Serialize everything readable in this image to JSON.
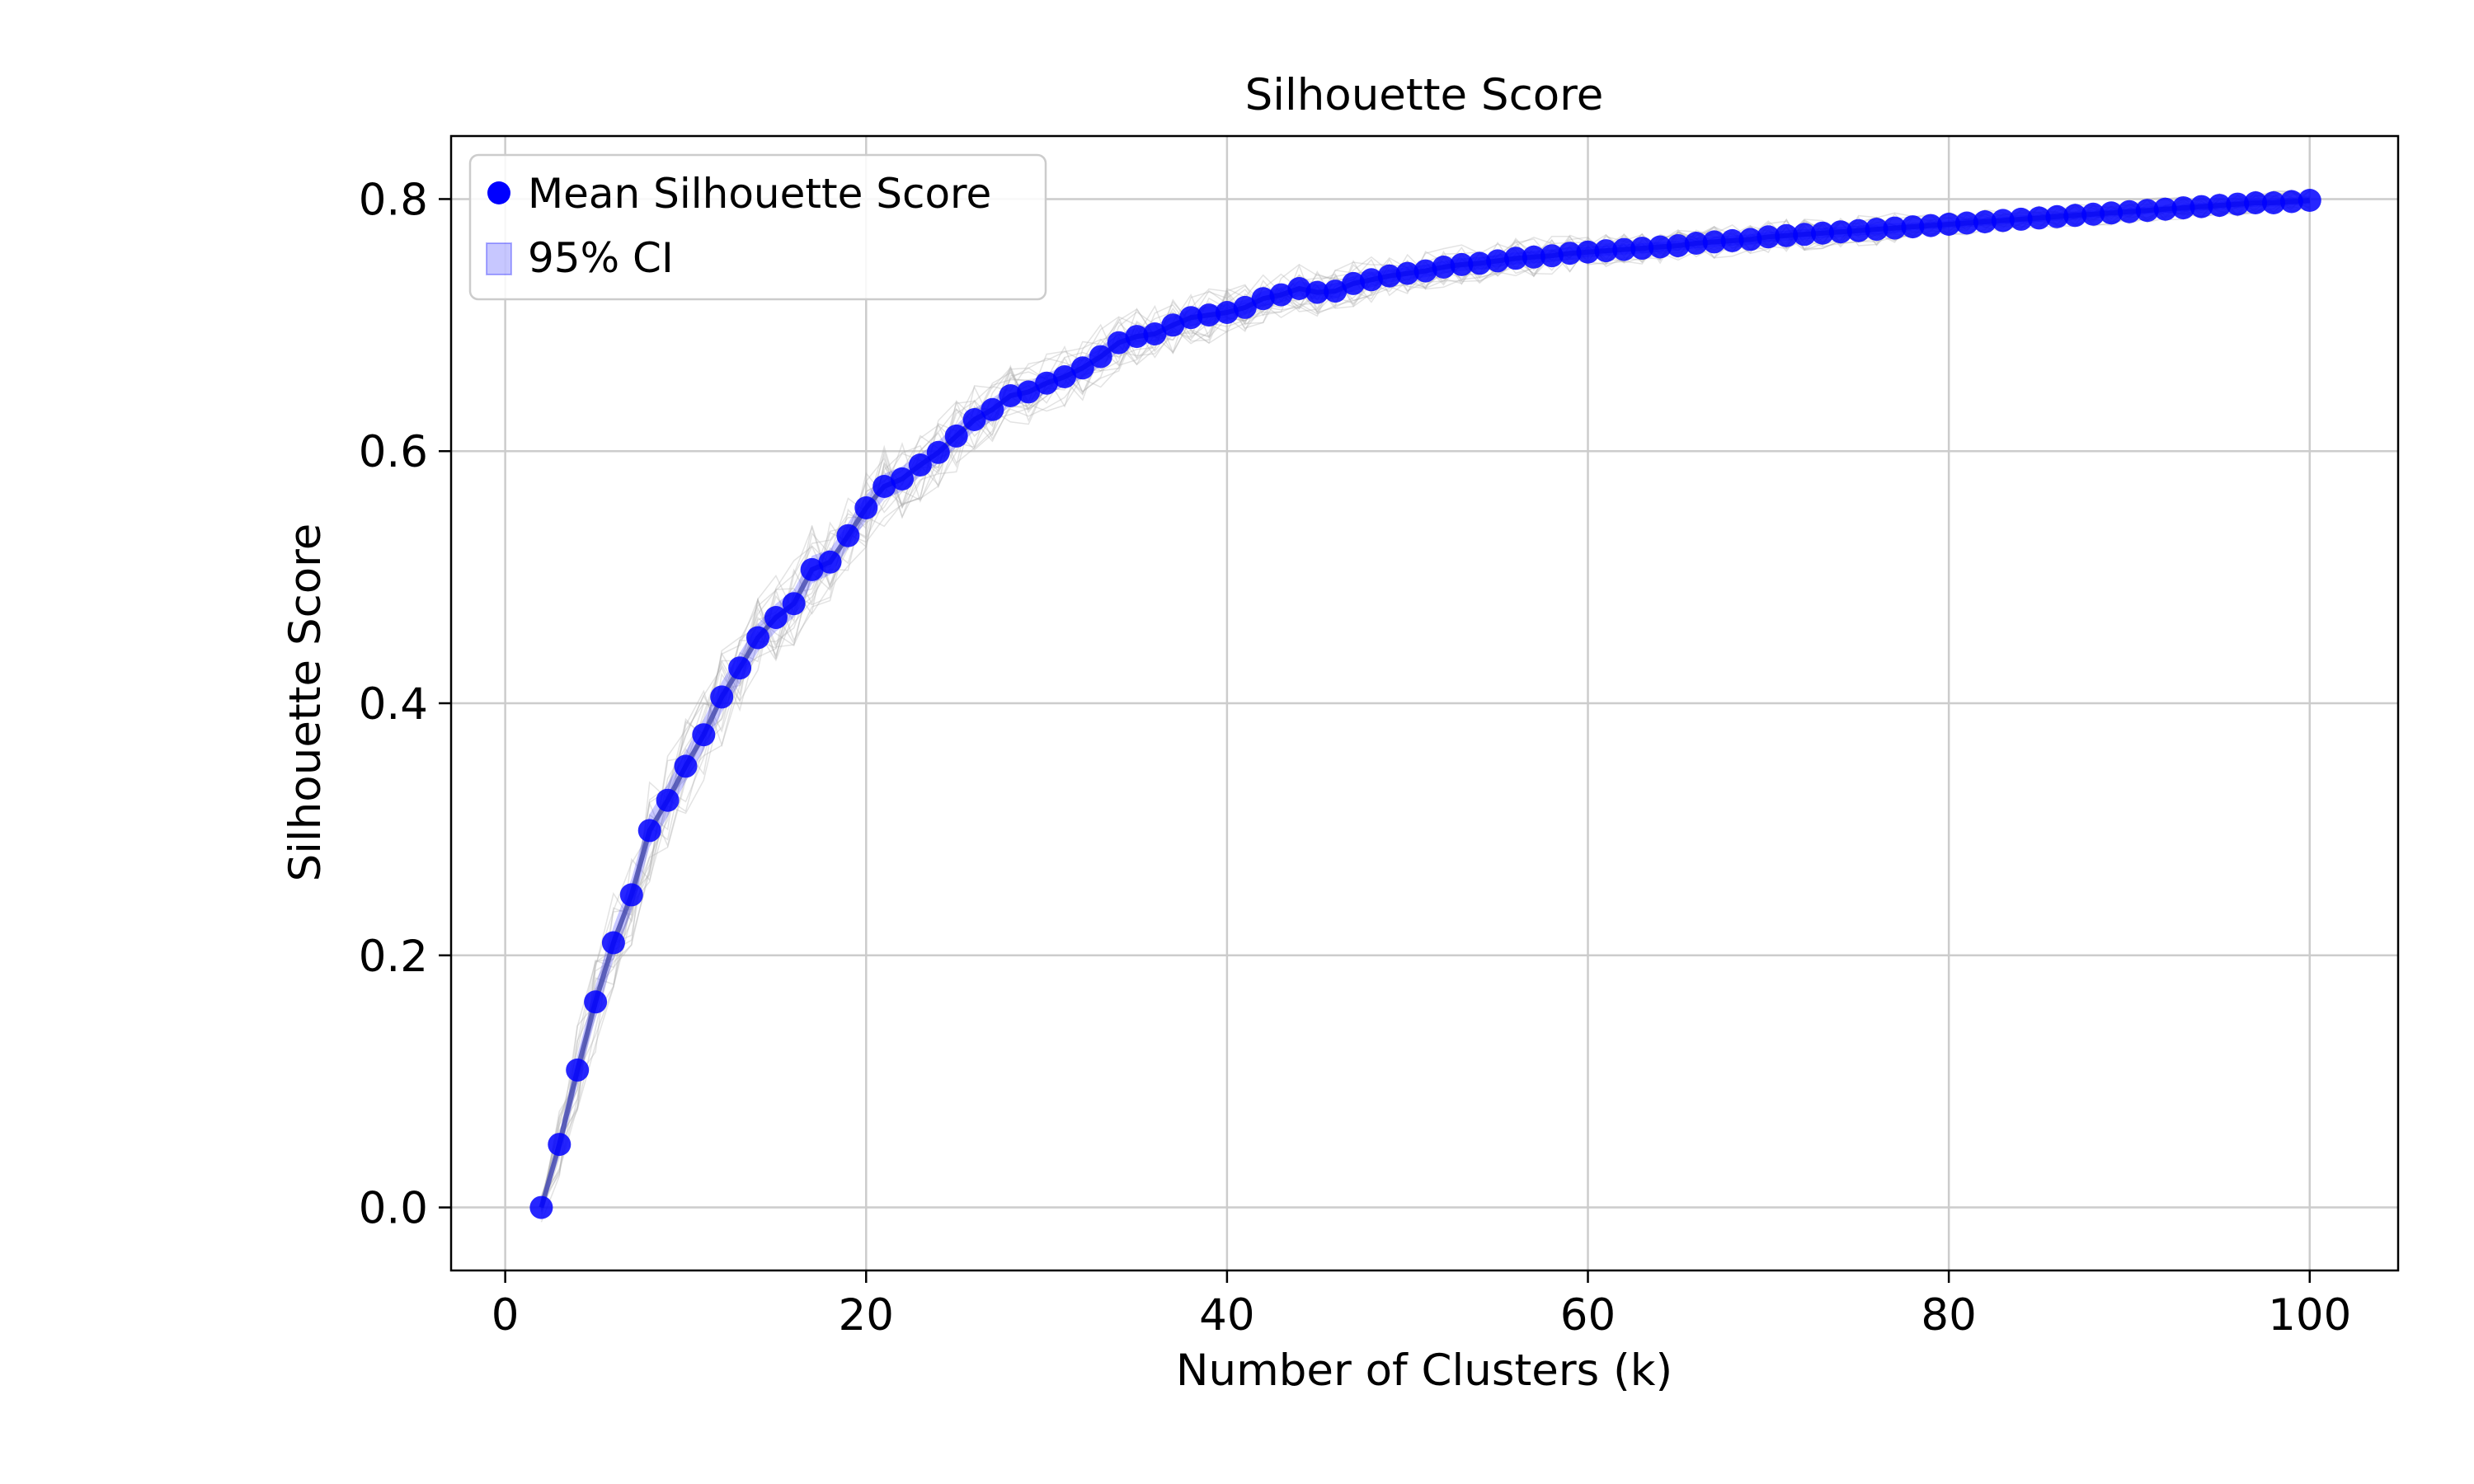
{
  "chart_data": {
    "type": "line",
    "title": "Silhouette Score",
    "xlabel": "Number of Clusters (k)",
    "ylabel": "Silhouette Score",
    "xlim": [
      -3.0,
      104.9
    ],
    "ylim": [
      -0.05,
      0.85
    ],
    "xticks": [
      0,
      20,
      40,
      60,
      80,
      100
    ],
    "xtick_labels": [
      "0",
      "20",
      "40",
      "60",
      "80",
      "100"
    ],
    "yticks": [
      0.0,
      0.2,
      0.4,
      0.6,
      0.8
    ],
    "ytick_labels": [
      "0.0",
      "0.2",
      "0.4",
      "0.6",
      "0.8"
    ],
    "grid": true,
    "legend": {
      "location": "top-left",
      "entries": [
        "Mean Silhouette Score",
        "95% CI"
      ]
    },
    "colors": {
      "mean": "#0000ff",
      "ci": "#0000ff",
      "bootstrap": "#b0b0b0",
      "grid": "#cccccc"
    },
    "series": [
      {
        "name": "Mean Silhouette Score",
        "x": [
          2,
          3,
          4,
          5,
          6,
          7,
          8,
          9,
          10,
          11,
          12,
          13,
          14,
          15,
          16,
          17,
          18,
          19,
          20,
          21,
          22,
          23,
          24,
          25,
          26,
          27,
          28,
          29,
          30,
          31,
          32,
          33,
          34,
          35,
          36,
          37,
          38,
          39,
          40,
          41,
          42,
          43,
          44,
          45,
          46,
          47,
          48,
          49,
          50,
          51,
          52,
          53,
          54,
          55,
          56,
          57,
          58,
          59,
          60,
          61,
          62,
          63,
          64,
          65,
          66,
          67,
          68,
          69,
          70,
          71,
          72,
          73,
          74,
          75,
          76,
          77,
          78,
          79,
          80,
          81,
          82,
          83,
          84,
          85,
          86,
          87,
          88,
          89,
          90,
          91,
          92,
          93,
          94,
          95,
          96,
          97,
          98,
          99,
          100
        ],
        "y": [
          0.0,
          0.05,
          0.109,
          0.163,
          0.21,
          0.248,
          0.299,
          0.323,
          0.35,
          0.375,
          0.405,
          0.428,
          0.452,
          0.468,
          0.479,
          0.506,
          0.512,
          0.533,
          0.555,
          0.572,
          0.578,
          0.589,
          0.599,
          0.612,
          0.625,
          0.633,
          0.644,
          0.647,
          0.654,
          0.659,
          0.666,
          0.675,
          0.686,
          0.691,
          0.693,
          0.7,
          0.706,
          0.708,
          0.71,
          0.714,
          0.721,
          0.724,
          0.729,
          0.726,
          0.727,
          0.733,
          0.736,
          0.739,
          0.741,
          0.743,
          0.746,
          0.748,
          0.749,
          0.751,
          0.753,
          0.754,
          0.755,
          0.757,
          0.758,
          0.759,
          0.76,
          0.761,
          0.762,
          0.763,
          0.765,
          0.766,
          0.767,
          0.768,
          0.77,
          0.771,
          0.772,
          0.773,
          0.774,
          0.775,
          0.776,
          0.777,
          0.778,
          0.779,
          0.78,
          0.781,
          0.782,
          0.783,
          0.784,
          0.785,
          0.786,
          0.787,
          0.788,
          0.789,
          0.79,
          0.791,
          0.792,
          0.793,
          0.794,
          0.795,
          0.796,
          0.797,
          0.797,
          0.798,
          0.799
        ],
        "ci_width": [
          0.004,
          0.009,
          0.012,
          0.013,
          0.013,
          0.013,
          0.013,
          0.013,
          0.012,
          0.012,
          0.012,
          0.012,
          0.011,
          0.011,
          0.011,
          0.011,
          0.01,
          0.01,
          0.01,
          0.01,
          0.01,
          0.009,
          0.009,
          0.009,
          0.009,
          0.009,
          0.008,
          0.008,
          0.008,
          0.008,
          0.008,
          0.008,
          0.007,
          0.007,
          0.007,
          0.007,
          0.007,
          0.007,
          0.007,
          0.006,
          0.006,
          0.006,
          0.006,
          0.006,
          0.006,
          0.006,
          0.006,
          0.005,
          0.005,
          0.005,
          0.005,
          0.005,
          0.005,
          0.005,
          0.005,
          0.005,
          0.005,
          0.005,
          0.004,
          0.004,
          0.004,
          0.004,
          0.004,
          0.004,
          0.004,
          0.004,
          0.004,
          0.004,
          0.004,
          0.004,
          0.004,
          0.004,
          0.004,
          0.004,
          0.004,
          0.004,
          0.003,
          0.003,
          0.003,
          0.003,
          0.003,
          0.003,
          0.003,
          0.003,
          0.003,
          0.003,
          0.003,
          0.003,
          0.003,
          0.003,
          0.003,
          0.003,
          0.003,
          0.003,
          0.003,
          0.003,
          0.003,
          0.003,
          0.003
        ]
      }
    ]
  }
}
